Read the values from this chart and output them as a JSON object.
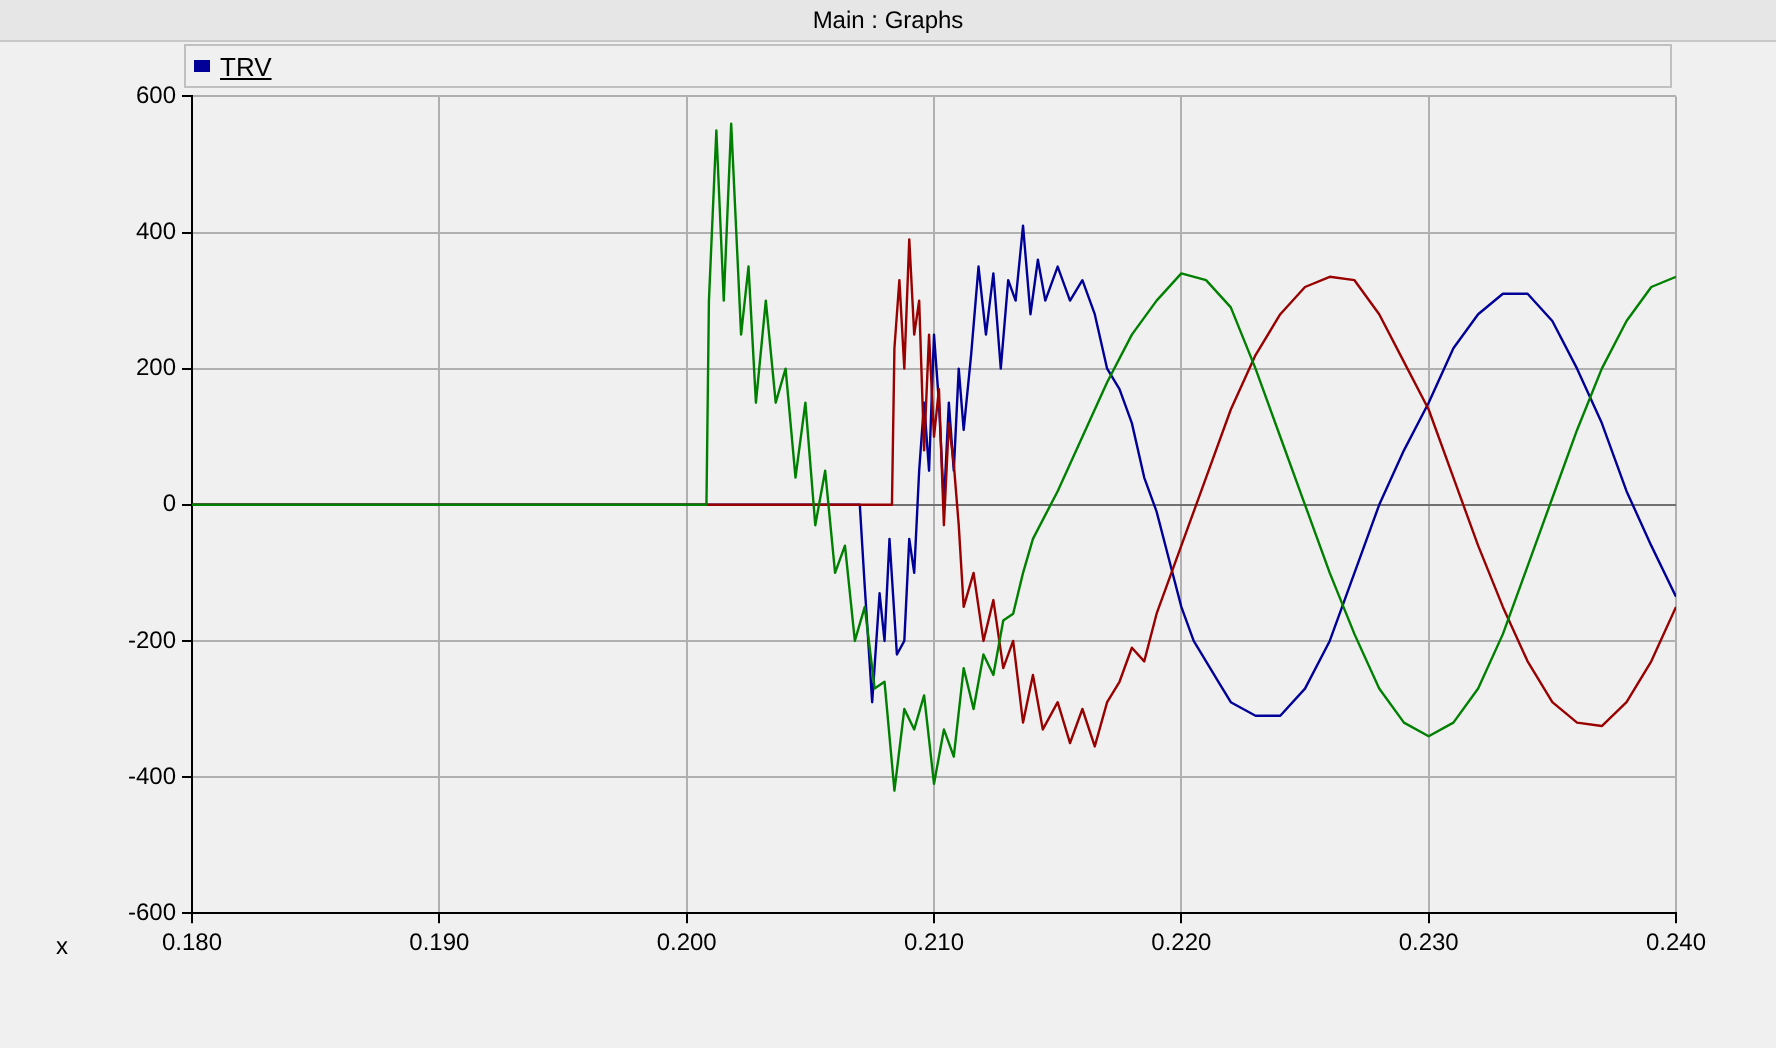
{
  "chart_data": {
    "type": "line",
    "title": "Main : Graphs",
    "xlabel": "x",
    "xlim": [
      0.18,
      0.24
    ],
    "xticks": [
      {
        "value": 0.18,
        "label": "0.180"
      },
      {
        "value": 0.19,
        "label": "0.190"
      },
      {
        "value": 0.2,
        "label": "0.200"
      },
      {
        "value": 0.21,
        "label": "0.210"
      },
      {
        "value": 0.22,
        "label": "0.220"
      },
      {
        "value": 0.23,
        "label": "0.230"
      },
      {
        "value": 0.24,
        "label": "0.240"
      }
    ],
    "ylim": [
      -600,
      600
    ],
    "yticks": [
      -600,
      -400,
      -200,
      0,
      200,
      400,
      600
    ],
    "grid": true,
    "legend": "top left",
    "marker": "none",
    "series": [
      {
        "color": "#008000",
        "x": [
          0.18,
          0.2008,
          0.2009,
          0.2012,
          0.2015,
          0.2018,
          0.2022,
          0.2025,
          0.2028,
          0.2032,
          0.2036,
          0.204,
          0.2044,
          0.2048,
          0.2052,
          0.2056,
          0.206,
          0.2064,
          0.2068,
          0.2072,
          0.2076,
          0.208,
          0.2084,
          0.2088,
          0.2092,
          0.2096,
          0.21,
          0.2104,
          0.2108,
          0.2112,
          0.2116,
          0.212,
          0.2124,
          0.2128,
          0.2132,
          0.2136,
          0.214,
          0.215,
          0.216,
          0.217,
          0.218,
          0.219,
          0.22,
          0.221,
          0.222,
          0.223,
          0.224,
          0.225,
          0.226,
          0.227,
          0.228,
          0.229,
          0.23,
          0.231,
          0.232,
          0.233,
          0.234,
          0.235,
          0.236,
          0.237,
          0.238,
          0.239,
          0.24
        ],
        "values": [
          0,
          0,
          300,
          550,
          300,
          560,
          250,
          350,
          150,
          300,
          150,
          200,
          40,
          150,
          -30,
          50,
          -100,
          -60,
          -200,
          -150,
          -270,
          -260,
          -420,
          -300,
          -330,
          -280,
          -410,
          -330,
          -370,
          -240,
          -300,
          -220,
          -250,
          -170,
          -160,
          -100,
          -50,
          20,
          100,
          180,
          250,
          300,
          340,
          330,
          290,
          200,
          100,
          0,
          -100,
          -190,
          -270,
          -320,
          -340,
          -320,
          -270,
          -190,
          -90,
          10,
          110,
          200,
          270,
          320,
          335
        ]
      },
      {
        "color": "#990000",
        "x": [
          0.18,
          0.2083,
          0.2084,
          0.2086,
          0.2088,
          0.209,
          0.2092,
          0.2094,
          0.2096,
          0.2098,
          0.21,
          0.2102,
          0.2104,
          0.2106,
          0.2108,
          0.211,
          0.2112,
          0.2116,
          0.212,
          0.2124,
          0.2128,
          0.2132,
          0.2136,
          0.214,
          0.2144,
          0.215,
          0.2155,
          0.216,
          0.2165,
          0.217,
          0.2175,
          0.218,
          0.2185,
          0.219,
          0.22,
          0.221,
          0.222,
          0.223,
          0.224,
          0.225,
          0.226,
          0.227,
          0.228,
          0.229,
          0.23,
          0.231,
          0.232,
          0.233,
          0.234,
          0.235,
          0.236,
          0.237,
          0.238,
          0.239,
          0.24
        ],
        "values": [
          0,
          0,
          230,
          330,
          200,
          390,
          250,
          300,
          80,
          250,
          100,
          170,
          -30,
          120,
          60,
          -30,
          -150,
          -100,
          -200,
          -140,
          -240,
          -200,
          -320,
          -250,
          -330,
          -290,
          -350,
          -300,
          -355,
          -290,
          -260,
          -210,
          -230,
          -160,
          -60,
          40,
          140,
          220,
          280,
          320,
          335,
          330,
          280,
          210,
          140,
          40,
          -60,
          -150,
          -230,
          -290,
          -320,
          -325,
          -290,
          -230,
          -150
        ]
      },
      {
        "name": "TRV",
        "color": "#000099",
        "x": [
          0.18,
          0.207,
          0.2072,
          0.2075,
          0.2078,
          0.208,
          0.2082,
          0.2085,
          0.2088,
          0.209,
          0.2092,
          0.2094,
          0.2096,
          0.2098,
          0.21,
          0.2102,
          0.2104,
          0.2106,
          0.2108,
          0.211,
          0.2112,
          0.2115,
          0.2118,
          0.2121,
          0.2124,
          0.2127,
          0.213,
          0.2133,
          0.2136,
          0.2139,
          0.2142,
          0.2145,
          0.215,
          0.2155,
          0.216,
          0.2165,
          0.217,
          0.2175,
          0.218,
          0.2185,
          0.219,
          0.2195,
          0.22,
          0.2205,
          0.221,
          0.2215,
          0.222,
          0.223,
          0.224,
          0.225,
          0.226,
          0.227,
          0.228,
          0.229,
          0.23,
          0.231,
          0.232,
          0.233,
          0.234,
          0.235,
          0.236,
          0.237,
          0.238,
          0.239,
          0.24
        ],
        "values": [
          0,
          0,
          -120,
          -290,
          -130,
          -200,
          -50,
          -220,
          -200,
          -50,
          -100,
          50,
          150,
          50,
          250,
          150,
          0,
          150,
          50,
          200,
          110,
          220,
          350,
          250,
          340,
          200,
          330,
          300,
          410,
          280,
          360,
          300,
          350,
          300,
          330,
          280,
          200,
          170,
          120,
          40,
          -10,
          -80,
          -150,
          -200,
          -230,
          -260,
          -290,
          -310,
          -310,
          -270,
          -200,
          -100,
          0,
          80,
          150,
          230,
          280,
          310,
          310,
          270,
          200,
          120,
          20,
          -60,
          -135
        ]
      }
    ]
  }
}
